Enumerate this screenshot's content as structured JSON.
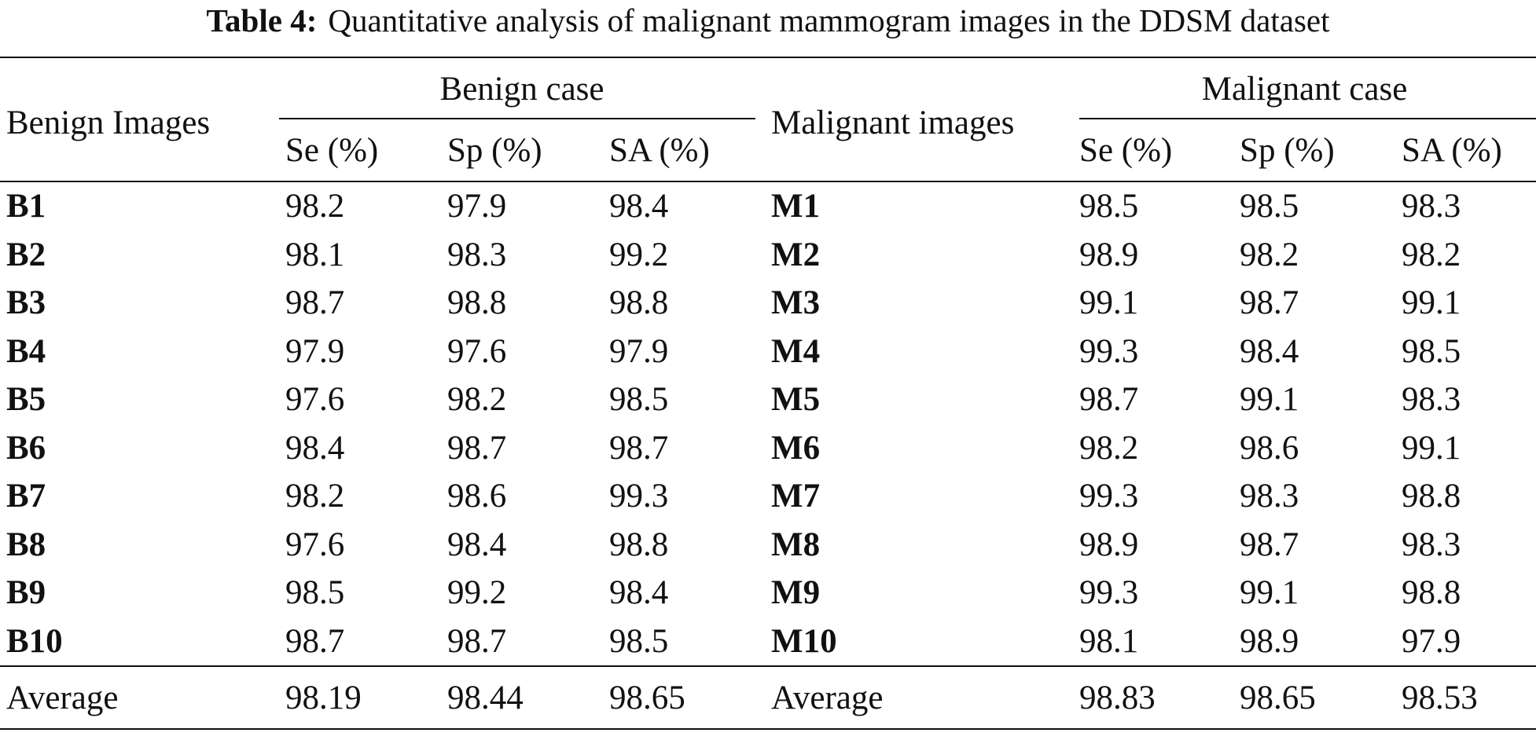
{
  "caption": {
    "label": "Table 4:",
    "text": "Quantitative analysis of malignant mammogram images in the DDSM dataset"
  },
  "headers": {
    "benign_images": "Benign Images",
    "benign_case": "Benign case",
    "malignant_images": "Malignant images",
    "malignant_case": "Malignant case",
    "se": "Se (%)",
    "sp": "Sp (%)",
    "sa": "SA (%)"
  },
  "rows": [
    {
      "b": "B1",
      "bse": "98.2",
      "bsp": "97.9",
      "bsa": "98.4",
      "m": "M1",
      "mse": "98.5",
      "msp": "98.5",
      "msa": "98.3"
    },
    {
      "b": "B2",
      "bse": "98.1",
      "bsp": "98.3",
      "bsa": "99.2",
      "m": "M2",
      "mse": "98.9",
      "msp": "98.2",
      "msa": "98.2"
    },
    {
      "b": "B3",
      "bse": "98.7",
      "bsp": "98.8",
      "bsa": "98.8",
      "m": "M3",
      "mse": "99.1",
      "msp": "98.7",
      "msa": "99.1"
    },
    {
      "b": "B4",
      "bse": "97.9",
      "bsp": "97.6",
      "bsa": "97.9",
      "m": "M4",
      "mse": "99.3",
      "msp": "98.4",
      "msa": "98.5"
    },
    {
      "b": "B5",
      "bse": "97.6",
      "bsp": "98.2",
      "bsa": "98.5",
      "m": "M5",
      "mse": "98.7",
      "msp": "99.1",
      "msa": "98.3"
    },
    {
      "b": "B6",
      "bse": "98.4",
      "bsp": "98.7",
      "bsa": "98.7",
      "m": "M6",
      "mse": "98.2",
      "msp": "98.6",
      "msa": "99.1"
    },
    {
      "b": "B7",
      "bse": "98.2",
      "bsp": "98.6",
      "bsa": "99.3",
      "m": "M7",
      "mse": "99.3",
      "msp": "98.3",
      "msa": "98.8"
    },
    {
      "b": "B8",
      "bse": "97.6",
      "bsp": "98.4",
      "bsa": "98.8",
      "m": "M8",
      "mse": "98.9",
      "msp": "98.7",
      "msa": "98.3"
    },
    {
      "b": "B9",
      "bse": "98.5",
      "bsp": "99.2",
      "bsa": "98.4",
      "m": "M9",
      "mse": "99.3",
      "msp": "99.1",
      "msa": "98.8"
    },
    {
      "b": "B10",
      "bse": "98.7",
      "bsp": "98.7",
      "bsa": "98.5",
      "m": "M10",
      "mse": "98.1",
      "msp": "98.9",
      "msa": "97.9"
    }
  ],
  "average": {
    "label_b": "Average",
    "bse": "98.19",
    "bsp": "98.44",
    "bsa": "98.65",
    "label_m": "Average",
    "mse": "98.83",
    "msp": "98.65",
    "msa": "98.53"
  }
}
